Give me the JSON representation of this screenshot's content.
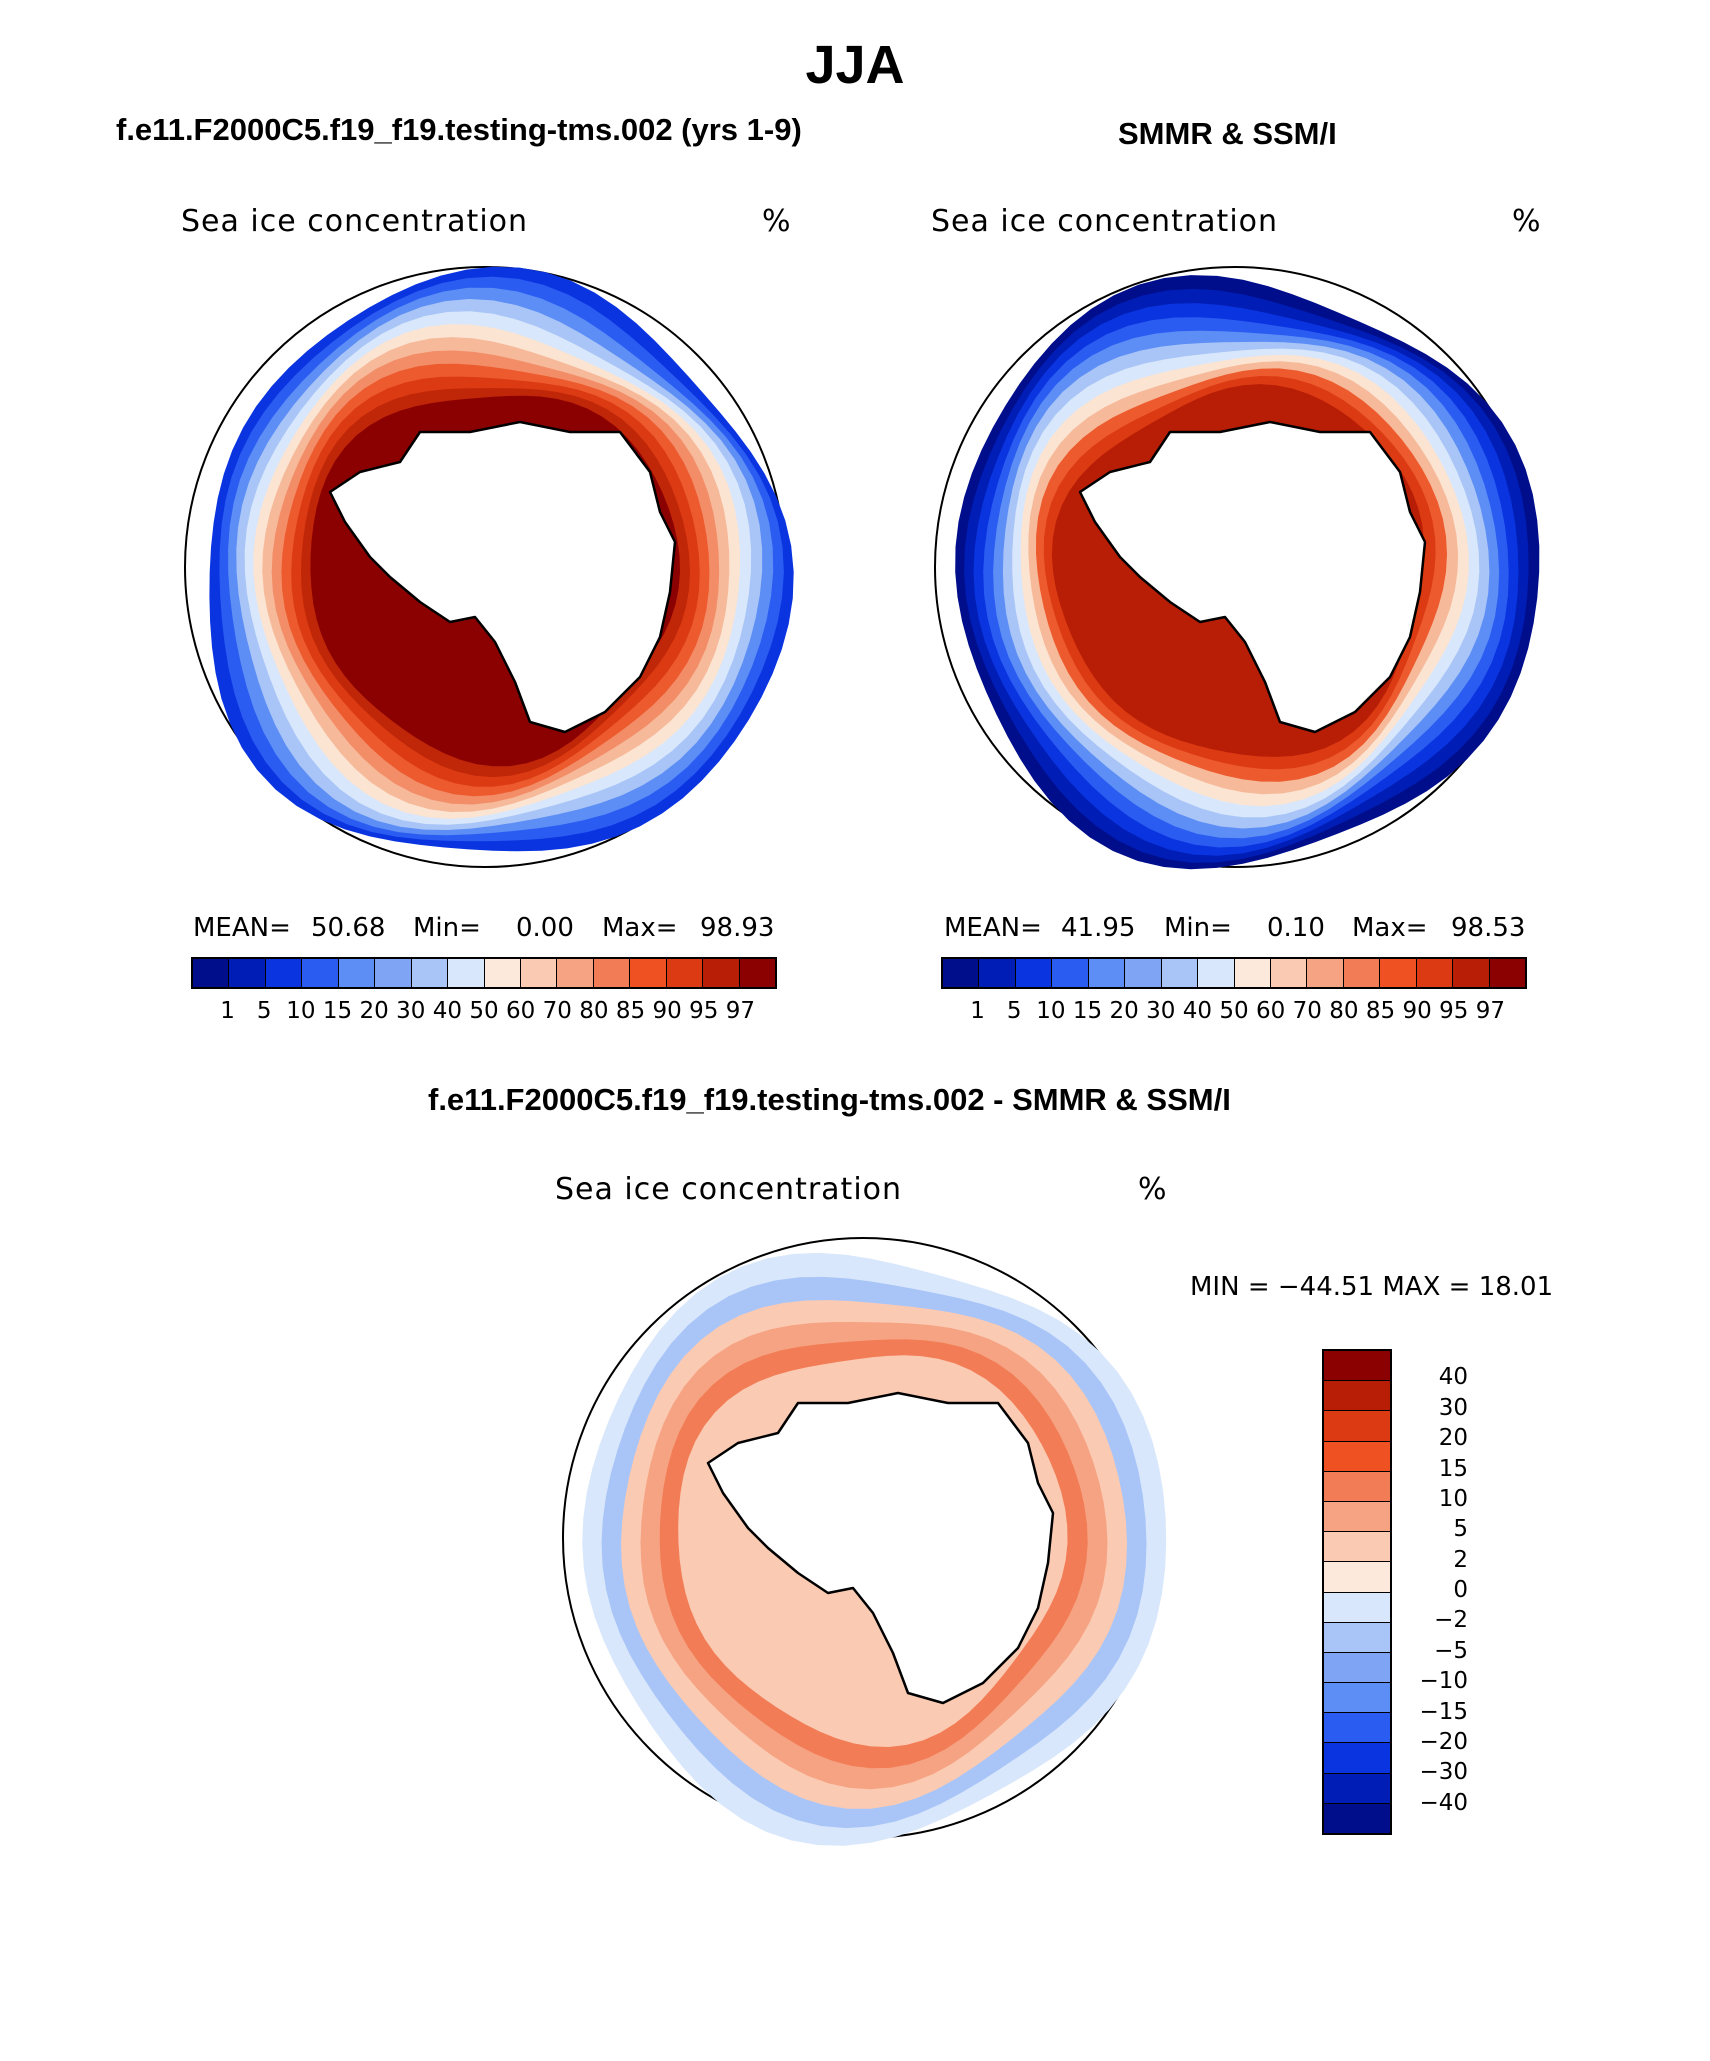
{
  "title": "JJA",
  "panels": [
    {
      "title": "f.e11.F2000C5.f19_f19.testing-tms.002 (yrs 1-9)",
      "left_label": "Sea ice concentration",
      "right_label": "%",
      "stats": {
        "mean_label": "MEAN=",
        "mean": "50.68",
        "min_label": "Min=",
        "min": "0.00",
        "max_label": "Max=",
        "max": "98.93"
      },
      "ring_colors": [
        "#0a34e0",
        "#2a5cf2",
        "#5d8ef5",
        "#a9c5f7",
        "#d8e7fb",
        "#fbe4d2",
        "#f6b99a",
        "#f28d68",
        "#ec5a2e",
        "#dc3a12",
        "#c02608",
        "#8b0000"
      ]
    },
    {
      "title": "SMMR & SSM/I",
      "left_label": "Sea ice concentration",
      "right_label": "%",
      "stats": {
        "mean_label": "MEAN=",
        "mean": "41.95",
        "min_label": "Min=",
        "min": "0.10",
        "max_label": "Max=",
        "max": "98.53"
      },
      "ring_colors": [
        "#000e8c",
        "#001db5",
        "#0a34e0",
        "#2a5cf2",
        "#5d8ef5",
        "#a9c5f7",
        "#d8e7fb",
        "#fbe4d2",
        "#f6b99a",
        "#ec5a2e",
        "#dc3a12",
        "#b81d06"
      ]
    }
  ],
  "colorbar": {
    "colors": [
      "#000e8c",
      "#001db5",
      "#0a34e0",
      "#2a5cf2",
      "#5d8ef5",
      "#7fa4f3",
      "#a9c5f7",
      "#d8e7fb",
      "#fde8dc",
      "#fbcab3",
      "#f6a383",
      "#f27c55",
      "#ef5123",
      "#dc3a12",
      "#b81d06",
      "#8b0000"
    ],
    "labels": [
      "1",
      "5",
      "10",
      "15",
      "20",
      "30",
      "40",
      "50",
      "60",
      "70",
      "80",
      "85",
      "90",
      "95",
      "97"
    ]
  },
  "diff": {
    "title": "f.e11.F2000C5.f19_f19.testing-tms.002 - SMMR & SSM/I",
    "left_label": "Sea ice concentration",
    "right_label": "%",
    "minmax": "MIN = −44.51 MAX =   18.01",
    "ring_colors": [
      "#d8e7fb",
      "#a9c5f7",
      "#fbcab3",
      "#f6a383",
      "#f27c55",
      "#fbcab3"
    ],
    "colorbar": {
      "colors": [
        "#8b0000",
        "#b81d06",
        "#dc3a12",
        "#ef5123",
        "#f27c55",
        "#f6a383",
        "#fbcab3",
        "#fde8dc",
        "#d8e7fb",
        "#a9c5f7",
        "#7fa4f3",
        "#5d8ef5",
        "#2a5cf2",
        "#0a34e0",
        "#001db5",
        "#000e8c"
      ],
      "labels": [
        "40",
        "30",
        "20",
        "15",
        "10",
        "5",
        "2",
        "0",
        "−2",
        "−5",
        "−10",
        "−15",
        "−20",
        "−30",
        "−40"
      ]
    }
  }
}
